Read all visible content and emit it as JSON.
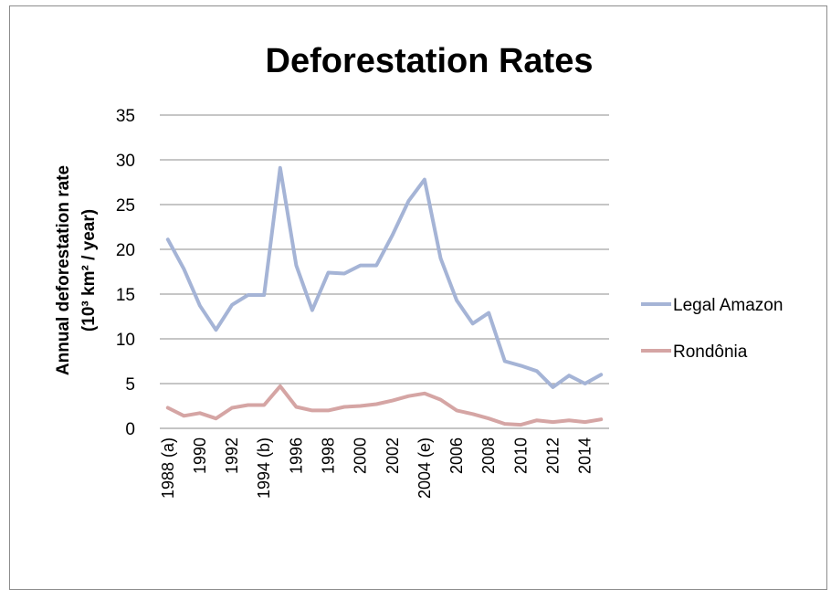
{
  "chart_data": {
    "type": "line",
    "title": "Deforestation Rates",
    "ylabel_line1": "Annual deforestation rate",
    "ylabel_line2": "(10³ km² / year)",
    "ylim": [
      0,
      35
    ],
    "yticks": [
      0,
      5,
      10,
      15,
      20,
      25,
      30,
      35
    ],
    "grid": true,
    "legend_position": "right",
    "x": [
      "1988 (a)",
      "1989",
      "1990",
      "1991",
      "1992",
      "1993",
      "1994 (b)",
      "1995",
      "1996",
      "1997",
      "1998",
      "1999",
      "2000",
      "2001",
      "2002",
      "2003",
      "2004 (e)",
      "2005",
      "2006",
      "2007",
      "2008",
      "2009",
      "2010",
      "2011",
      "2012",
      "2013",
      "2014",
      "2015"
    ],
    "xtick_labels": [
      "1988 (a)",
      "1990",
      "1992",
      "1994 (b)",
      "1996",
      "1998",
      "2000",
      "2002",
      "2004 (e)",
      "2006",
      "2008",
      "2010",
      "2012",
      "2014"
    ],
    "series": [
      {
        "name": "Legal Amazon",
        "color": "#a5b4d6",
        "values": [
          21.1,
          17.8,
          13.7,
          11.0,
          13.8,
          14.9,
          14.9,
          29.1,
          18.2,
          13.2,
          17.4,
          17.3,
          18.2,
          18.2,
          21.6,
          25.4,
          27.8,
          19.0,
          14.3,
          11.7,
          12.9,
          7.5,
          7.0,
          6.4,
          4.6,
          5.9,
          5.0,
          6.0
        ]
      },
      {
        "name": "Rondônia",
        "color": "#d5a5a4",
        "values": [
          2.3,
          1.4,
          1.7,
          1.1,
          2.3,
          2.6,
          2.6,
          4.7,
          2.4,
          2.0,
          2.0,
          2.4,
          2.5,
          2.7,
          3.1,
          3.6,
          3.9,
          3.2,
          2.0,
          1.6,
          1.1,
          0.5,
          0.4,
          0.9,
          0.7,
          0.9,
          0.7,
          1.0
        ]
      }
    ]
  }
}
